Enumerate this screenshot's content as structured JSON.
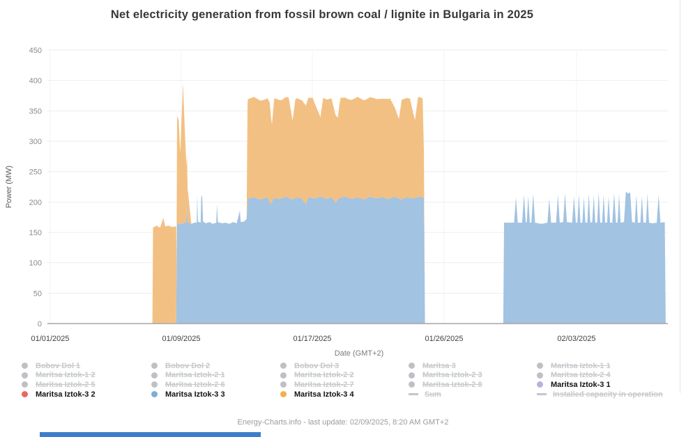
{
  "title": "Net electricity generation from fossil brown coal / lignite in Bulgaria in 2025",
  "footer": "Energy-Charts.info - last update: 02/09/2025, 8:20 AM GMT+2",
  "colors": {
    "area_blue": "#a2c3e2",
    "area_orange": "#f3c083",
    "legend_red": "#e9685f",
    "legend_blue": "#7badda",
    "legend_orange": "#f3b04e",
    "legend_purple": "#b7b0e3",
    "disabled_gray": "#c3c7cb",
    "grid": "#ededed",
    "vgrid": "#f3f3f3",
    "axis_line": "#a6a6a6",
    "bottom_bar_blue": "#3d7dca"
  },
  "chart_data": {
    "type": "area",
    "stacked": true,
    "title": "Net electricity generation from fossil brown coal / lignite in Bulgaria in 2025",
    "xlabel": "Date (GMT+2)",
    "ylabel": "Power (MW)",
    "ylim": [
      0,
      450
    ],
    "ytick_step": 50,
    "yticks": [
      0,
      50,
      100,
      150,
      200,
      250,
      300,
      350,
      400,
      450
    ],
    "grid": "horizontal+faint-vertical",
    "legend_position": "bottom",
    "x_axis_note": "point x values are fractions of the plot width; axis spans 01/01/2025 through ~02/09/2025",
    "xticks": [
      {
        "label": "01/01/2025",
        "f": 0.0
      },
      {
        "label": "01/09/2025",
        "f": 0.2122
      },
      {
        "label": "01/17/2025",
        "f": 0.4244
      },
      {
        "label": "01/26/2025",
        "f": 0.6377
      },
      {
        "label": "02/03/2025",
        "f": 0.8521
      }
    ],
    "series": [
      {
        "name": "Maritsa Iztok-3 1",
        "color": "#b7b0e3",
        "visible": true,
        "points": []
      },
      {
        "name": "Maritsa Iztok-3 2",
        "color": "#e9685f",
        "visible": true,
        "points": []
      },
      {
        "name": "Maritsa Iztok-3 3",
        "color": "#a2c3e2",
        "visible": true,
        "points": [
          [
            0.204,
            0
          ],
          [
            0.2052,
            166
          ],
          [
            0.211,
            163
          ],
          [
            0.216,
            166
          ],
          [
            0.2205,
            167
          ],
          [
            0.2215,
            206
          ],
          [
            0.2225,
            167
          ],
          [
            0.228,
            164
          ],
          [
            0.2335,
            166
          ],
          [
            0.2372,
            166
          ],
          [
            0.238,
            211
          ],
          [
            0.2392,
            168
          ],
          [
            0.2435,
            166
          ],
          [
            0.2445,
            208
          ],
          [
            0.246,
            211
          ],
          [
            0.2475,
            168
          ],
          [
            0.252,
            165
          ],
          [
            0.258,
            167
          ],
          [
            0.263,
            164
          ],
          [
            0.2688,
            166
          ],
          [
            0.27,
            196
          ],
          [
            0.2715,
            167
          ],
          [
            0.278,
            165
          ],
          [
            0.284,
            166
          ],
          [
            0.29,
            164
          ],
          [
            0.296,
            167
          ],
          [
            0.302,
            165
          ],
          [
            0.307,
            186
          ],
          [
            0.3085,
            167
          ],
          [
            0.314,
            168
          ],
          [
            0.318,
            172
          ],
          [
            0.32,
            206
          ],
          [
            0.33,
            208
          ],
          [
            0.34,
            204
          ],
          [
            0.352,
            208
          ],
          [
            0.3575,
            196
          ],
          [
            0.362,
            207
          ],
          [
            0.372,
            205
          ],
          [
            0.382,
            209
          ],
          [
            0.392,
            204
          ],
          [
            0.4,
            208
          ],
          [
            0.408,
            205
          ],
          [
            0.414,
            196
          ],
          [
            0.418,
            208
          ],
          [
            0.428,
            206
          ],
          [
            0.438,
            209
          ],
          [
            0.448,
            205
          ],
          [
            0.456,
            208
          ],
          [
            0.462,
            199
          ],
          [
            0.468,
            207
          ],
          [
            0.478,
            209
          ],
          [
            0.488,
            205
          ],
          [
            0.498,
            208
          ],
          [
            0.508,
            204
          ],
          [
            0.518,
            209
          ],
          [
            0.528,
            206
          ],
          [
            0.538,
            208
          ],
          [
            0.548,
            205
          ],
          [
            0.558,
            209
          ],
          [
            0.568,
            204
          ],
          [
            0.578,
            208
          ],
          [
            0.588,
            206
          ],
          [
            0.598,
            209
          ],
          [
            0.605,
            207
          ],
          [
            0.6068,
            0
          ],
          [
            0.7335,
            0
          ],
          [
            0.7348,
            166
          ],
          [
            0.751,
            166
          ],
          [
            0.754,
            208
          ],
          [
            0.757,
            166
          ],
          [
            0.764,
            166
          ],
          [
            0.767,
            212
          ],
          [
            0.77,
            166
          ],
          [
            0.7715,
            167
          ],
          [
            0.774,
            210
          ],
          [
            0.7765,
            166
          ],
          [
            0.779,
            166
          ],
          [
            0.782,
            214
          ],
          [
            0.785,
            166
          ],
          [
            0.795,
            164
          ],
          [
            0.805,
            166
          ],
          [
            0.808,
            206
          ],
          [
            0.811,
            166
          ],
          [
            0.819,
            166
          ],
          [
            0.822,
            212
          ],
          [
            0.825,
            166
          ],
          [
            0.8305,
            167
          ],
          [
            0.8335,
            215
          ],
          [
            0.8365,
            167
          ],
          [
            0.845,
            166
          ],
          [
            0.848,
            210
          ],
          [
            0.851,
            166
          ],
          [
            0.8535,
            166
          ],
          [
            0.856,
            213
          ],
          [
            0.8585,
            166
          ],
          [
            0.8615,
            166
          ],
          [
            0.864,
            208
          ],
          [
            0.8665,
            166
          ],
          [
            0.8695,
            166
          ],
          [
            0.872,
            214
          ],
          [
            0.8745,
            166
          ],
          [
            0.8775,
            167
          ],
          [
            0.88,
            211
          ],
          [
            0.8825,
            166
          ],
          [
            0.8855,
            166
          ],
          [
            0.888,
            216
          ],
          [
            0.8905,
            166
          ],
          [
            0.8935,
            166
          ],
          [
            0.896,
            212
          ],
          [
            0.8985,
            166
          ],
          [
            0.9015,
            166
          ],
          [
            0.904,
            209
          ],
          [
            0.9065,
            166
          ],
          [
            0.91,
            166
          ],
          [
            0.913,
            215
          ],
          [
            0.916,
            166
          ],
          [
            0.9185,
            166
          ],
          [
            0.921,
            213
          ],
          [
            0.9235,
            166
          ],
          [
            0.929,
            167
          ],
          [
            0.932,
            217
          ],
          [
            0.936,
            214
          ],
          [
            0.939,
            216
          ],
          [
            0.942,
            167
          ],
          [
            0.9465,
            166
          ],
          [
            0.949,
            212
          ],
          [
            0.9515,
            166
          ],
          [
            0.9555,
            166
          ],
          [
            0.958,
            210
          ],
          [
            0.9605,
            166
          ],
          [
            0.9645,
            166
          ],
          [
            0.967,
            214
          ],
          [
            0.9695,
            166
          ],
          [
            0.975,
            165
          ],
          [
            0.982,
            166
          ],
          [
            0.985,
            212
          ],
          [
            0.988,
            166
          ],
          [
            0.995,
            167
          ],
          [
            0.9965,
            0
          ]
        ]
      },
      {
        "name": "Maritsa Iztok-3 4",
        "color": "#f3c083",
        "visible": true,
        "points": [
          [
            0.1655,
            0
          ],
          [
            0.1665,
            158
          ],
          [
            0.172,
            161
          ],
          [
            0.178,
            158
          ],
          [
            0.1832,
            174
          ],
          [
            0.1862,
            160
          ],
          [
            0.192,
            161
          ],
          [
            0.1975,
            159
          ],
          [
            0.204,
            160
          ],
          [
            0.2045,
            20
          ],
          [
            0.2055,
            176
          ],
          [
            0.208,
            170
          ],
          [
            0.2105,
            118
          ],
          [
            0.213,
            180
          ],
          [
            0.215,
            230
          ],
          [
            0.218,
            150
          ],
          [
            0.222,
            60
          ],
          [
            0.2285,
            0
          ],
          [
            0.318,
            0
          ],
          [
            0.3195,
            163
          ],
          [
            0.33,
            165
          ],
          [
            0.345,
            162
          ],
          [
            0.3555,
            163
          ],
          [
            0.359,
            128
          ],
          [
            0.363,
            164
          ],
          [
            0.375,
            162
          ],
          [
            0.386,
            165
          ],
          [
            0.3925,
            130
          ],
          [
            0.397,
            163
          ],
          [
            0.41,
            162
          ],
          [
            0.425,
            165
          ],
          [
            0.4375,
            131
          ],
          [
            0.442,
            164
          ],
          [
            0.455,
            163
          ],
          [
            0.4655,
            135
          ],
          [
            0.47,
            164
          ],
          [
            0.483,
            162
          ],
          [
            0.497,
            165
          ],
          [
            0.51,
            163
          ],
          [
            0.524,
            164
          ],
          [
            0.5375,
            162
          ],
          [
            0.55,
            165
          ],
          [
            0.5645,
            131
          ],
          [
            0.569,
            164
          ],
          [
            0.5825,
            163
          ],
          [
            0.5905,
            128
          ],
          [
            0.5955,
            164
          ],
          [
            0.603,
            163
          ],
          [
            0.6068,
            0
          ]
        ]
      }
    ]
  },
  "legend": {
    "columns": [
      {
        "items": [
          {
            "label": "Bobov Dol 1",
            "marker": "dot",
            "color": "#bdc1c5",
            "disabled": true
          },
          {
            "label": "Maritsa Iztok-1 2",
            "marker": "dot",
            "color": "#bdc1c5",
            "disabled": true
          },
          {
            "label": "Maritsa Iztok-2 5",
            "marker": "dot",
            "color": "#bdc1c5",
            "disabled": true
          },
          {
            "label": "Maritsa Iztok-3 2",
            "marker": "dot",
            "color": "#e9685f",
            "disabled": false
          }
        ]
      },
      {
        "items": [
          {
            "label": "Bobov Dol 2",
            "marker": "dot",
            "color": "#bdc1c5",
            "disabled": true
          },
          {
            "label": "Maritsa Iztok-2 1",
            "marker": "dot",
            "color": "#bdc1c5",
            "disabled": true
          },
          {
            "label": "Maritsa Iztok-2 6",
            "marker": "dot",
            "color": "#bdc1c5",
            "disabled": true
          },
          {
            "label": "Maritsa Iztok-3 3",
            "marker": "dot",
            "color": "#7badda",
            "disabled": false
          }
        ]
      },
      {
        "items": [
          {
            "label": "Bobov Dol 3",
            "marker": "dot",
            "color": "#bdc1c5",
            "disabled": true
          },
          {
            "label": "Maritsa Iztok-2 2",
            "marker": "dot",
            "color": "#bdc1c5",
            "disabled": true
          },
          {
            "label": "Maritsa Iztok-2 7",
            "marker": "dot",
            "color": "#bdc1c5",
            "disabled": true
          },
          {
            "label": "Maritsa Iztok-3 4",
            "marker": "dot",
            "color": "#f3b04e",
            "disabled": false
          }
        ]
      },
      {
        "items": [
          {
            "label": "Maritsa 3",
            "marker": "dot",
            "color": "#bdc1c5",
            "disabled": true
          },
          {
            "label": "Maritsa Iztok-2 3",
            "marker": "dot",
            "color": "#bdc1c5",
            "disabled": true
          },
          {
            "label": "Maritsa Iztok-2 8",
            "marker": "dot",
            "color": "#bdc1c5",
            "disabled": true
          },
          {
            "label": "Sum",
            "marker": "line",
            "color": "#c3c7cb",
            "disabled": true
          }
        ]
      },
      {
        "items": [
          {
            "label": "Maritsa Iztok-1 1",
            "marker": "dot",
            "color": "#bdc1c5",
            "disabled": true
          },
          {
            "label": "Maritsa Iztok-2 4",
            "marker": "dot",
            "color": "#bdc1c5",
            "disabled": true
          },
          {
            "label": "Maritsa Iztok-3 1",
            "marker": "dot",
            "color": "#b7b0e3",
            "disabled": false
          },
          {
            "label": "Installed capacity in operation",
            "marker": "line",
            "color": "#c3c7cb",
            "disabled": true
          }
        ]
      }
    ]
  }
}
